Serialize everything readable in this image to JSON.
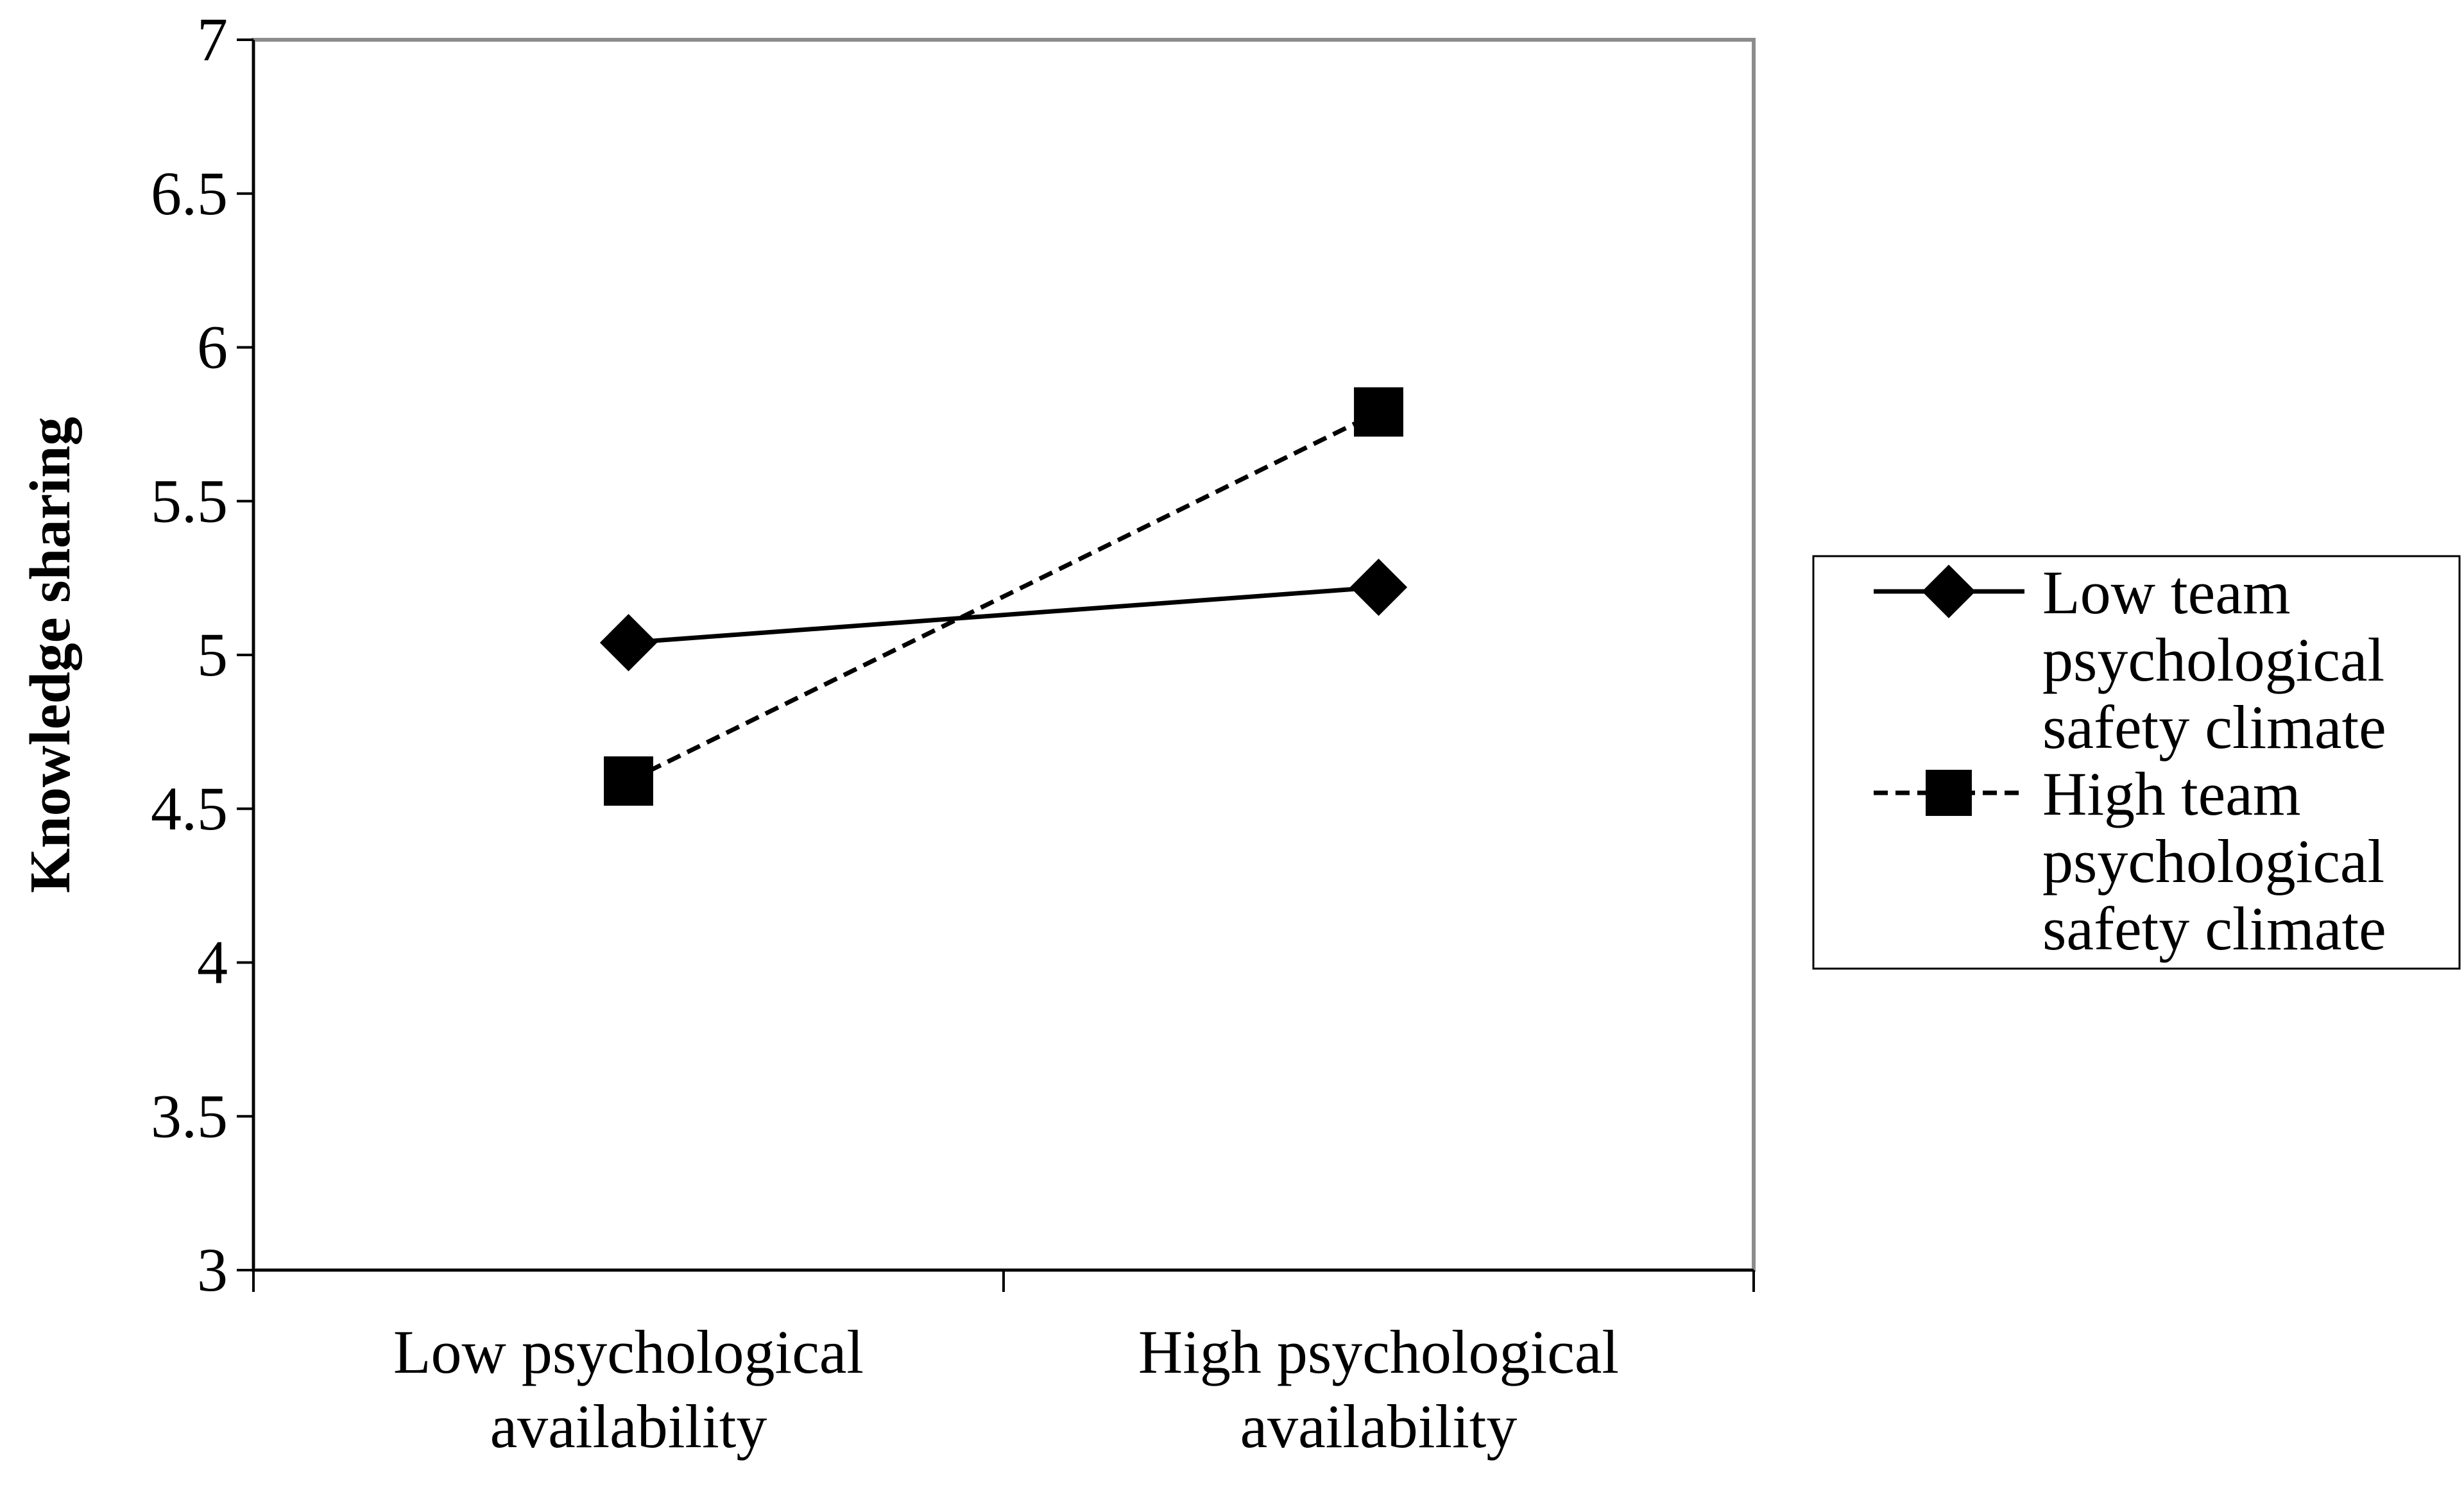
{
  "chart_data": {
    "type": "line",
    "title": "",
    "xlabel": "",
    "ylabel": "Knowledge sharing",
    "ylim": [
      3,
      7
    ],
    "yticks": [
      "3",
      "3.5",
      "4",
      "4.5",
      "5",
      "5.5",
      "6",
      "6.5",
      "7"
    ],
    "categories": [
      [
        "Low psychological",
        "availability"
      ],
      [
        "High psychological",
        "availability"
      ]
    ],
    "grid": false,
    "legend_position": "right",
    "series": [
      {
        "name": [
          "Low team",
          "psychological",
          "safety climate"
        ],
        "values": [
          5.04,
          5.22
        ],
        "line_style": "solid",
        "marker": "diamond",
        "color": "#000000"
      },
      {
        "name": [
          "High team",
          "psychological",
          "safety climate"
        ],
        "values": [
          4.59,
          5.79
        ],
        "line_style": "dashed",
        "marker": "square",
        "color": "#000000"
      }
    ]
  }
}
